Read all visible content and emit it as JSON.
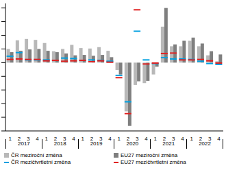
{
  "chart_data": {
    "type": "bar",
    "categories": [
      "1",
      "2",
      "3",
      "4",
      "1",
      "2",
      "3",
      "4",
      "1",
      "2",
      "3",
      "4",
      "1",
      "2",
      "3",
      "4",
      "1",
      "2",
      "3",
      "4",
      "1",
      "2",
      "3",
      "4"
    ],
    "x_groups": [
      "2017",
      "2018",
      "2019",
      "2020",
      "2021",
      "2022"
    ],
    "series": [
      {
        "name": "ČR meziroční změna",
        "type": "bar",
        "color": "#b8b8b8",
        "values": [
          3.0,
          4.9,
          5.2,
          5.0,
          4.3,
          2.5,
          3.0,
          3.9,
          3.2,
          3.1,
          3.4,
          2.6,
          -1.6,
          -10.7,
          -4.9,
          -4.5,
          -2.6,
          7.9,
          3.6,
          3.6,
          4.8,
          3.6,
          1.6,
          0.3
        ]
      },
      {
        "name": "EU27 meziroční změna",
        "type": "bar",
        "color": "#7f7f7f",
        "values": [
          2.3,
          2.6,
          2.9,
          3.0,
          2.6,
          2.3,
          2.0,
          1.6,
          1.7,
          1.5,
          1.7,
          1.2,
          -2.6,
          -13.9,
          -4.1,
          -4.0,
          -0.9,
          12.0,
          4.0,
          4.8,
          5.5,
          4.2,
          2.5,
          1.8
        ]
      },
      {
        "name": "ČR mezičtvrtletní změna",
        "type": "line",
        "marker": "dash",
        "line_style": "none",
        "color": "#00a0e0",
        "values": [
          1.4,
          2.2,
          0.6,
          0.6,
          0.6,
          0.5,
          1.0,
          0.9,
          0.5,
          0.6,
          0.5,
          0.3,
          -2.8,
          -8.6,
          6.9,
          0.6,
          -0.2,
          1.1,
          0.8,
          0.8,
          0.7,
          0.3,
          -0.2,
          -0.4
        ]
      },
      {
        "name": "EU27 mezičtvrtletní změna",
        "type": "line",
        "marker": "dash",
        "line_style": "none",
        "color": "#e02020",
        "values": [
          0.7,
          0.8,
          0.7,
          0.7,
          0.4,
          0.5,
          0.3,
          0.4,
          0.5,
          0.2,
          0.4,
          0.1,
          -3.3,
          -11.2,
          11.6,
          -0.3,
          -0.1,
          2.0,
          2.1,
          0.6,
          0.6,
          0.7,
          0.4,
          -0.1
        ]
      }
    ],
    "ylim": [
      -15,
      13
    ],
    "yticks": [
      -15,
      -12,
      -9,
      -6,
      -3,
      0,
      3,
      6,
      9,
      12
    ],
    "tick_labels": "x",
    "grid": false,
    "legend": "bottom"
  }
}
